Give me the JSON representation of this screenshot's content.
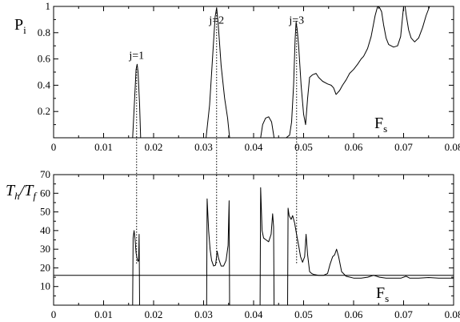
{
  "chart_data": [
    {
      "type": "line",
      "ylabel": "P",
      "ylabel_sub": "i",
      "xlabel": "F",
      "xlabel_sub": "s",
      "xlim": [
        0,
        0.08
      ],
      "ylim": [
        0,
        1
      ],
      "x_ticks": [
        0,
        0.01,
        0.02,
        0.03,
        0.04,
        0.05,
        0.06,
        0.07,
        0.08
      ],
      "x_tick_labels": [
        "0",
        "0.01",
        "0.02",
        "0.03",
        "0.04",
        "0.05",
        "0.06",
        "0.07",
        "0.08"
      ],
      "y_ticks": [
        0.2,
        0.4,
        0.6,
        0.8,
        1
      ],
      "y_tick_labels": [
        "0.2",
        "0.4",
        "0.6",
        "0.8",
        "1"
      ],
      "annotations": [
        {
          "text": "j=1",
          "x": 0.0166,
          "y": 0.6
        },
        {
          "text": "j=2",
          "x": 0.0326,
          "y": 0.87
        },
        {
          "text": "j=3",
          "x": 0.0486,
          "y": 0.87
        }
      ],
      "series": [
        {
          "points": [
            [
              0.0158,
              0.0
            ],
            [
              0.0162,
              0.3
            ],
            [
              0.0165,
              0.52
            ],
            [
              0.0167,
              0.56
            ],
            [
              0.0169,
              0.5
            ],
            [
              0.0172,
              0.25
            ],
            [
              0.0174,
              0.0
            ],
            [
              0.0305,
              0.0
            ],
            [
              0.0312,
              0.25
            ],
            [
              0.0318,
              0.62
            ],
            [
              0.0323,
              0.92
            ],
            [
              0.0326,
              0.99
            ],
            [
              0.0329,
              0.88
            ],
            [
              0.0335,
              0.55
            ],
            [
              0.0342,
              0.3
            ],
            [
              0.0348,
              0.15
            ],
            [
              0.0352,
              0.0
            ],
            [
              0.0414,
              0.0
            ],
            [
              0.0418,
              0.1
            ],
            [
              0.0424,
              0.15
            ],
            [
              0.043,
              0.16
            ],
            [
              0.0436,
              0.12
            ],
            [
              0.0441,
              0.0
            ],
            [
              0.0465,
              0.0
            ],
            [
              0.0472,
              0.02
            ],
            [
              0.0476,
              0.12
            ],
            [
              0.048,
              0.4
            ],
            [
              0.0483,
              0.75
            ],
            [
              0.0485,
              0.88
            ],
            [
              0.0487,
              0.83
            ],
            [
              0.049,
              0.7
            ],
            [
              0.0495,
              0.4
            ],
            [
              0.05,
              0.18
            ],
            [
              0.0504,
              0.1
            ],
            [
              0.0508,
              0.3
            ],
            [
              0.0512,
              0.46
            ],
            [
              0.0518,
              0.48
            ],
            [
              0.0525,
              0.49
            ],
            [
              0.053,
              0.46
            ],
            [
              0.0538,
              0.43
            ],
            [
              0.0548,
              0.41
            ],
            [
              0.0555,
              0.4
            ],
            [
              0.056,
              0.38
            ],
            [
              0.0565,
              0.33
            ],
            [
              0.0572,
              0.36
            ],
            [
              0.0578,
              0.4
            ],
            [
              0.0585,
              0.44
            ],
            [
              0.0592,
              0.49
            ],
            [
              0.06,
              0.52
            ],
            [
              0.0608,
              0.56
            ],
            [
              0.0615,
              0.6
            ],
            [
              0.062,
              0.62
            ],
            [
              0.0628,
              0.68
            ],
            [
              0.0635,
              0.77
            ],
            [
              0.0643,
              0.93
            ],
            [
              0.0648,
              1.0
            ],
            [
              0.0652,
              0.99
            ],
            [
              0.0656,
              0.96
            ],
            [
              0.066,
              0.86
            ],
            [
              0.0665,
              0.76
            ],
            [
              0.067,
              0.71
            ],
            [
              0.068,
              0.69
            ],
            [
              0.0688,
              0.7
            ],
            [
              0.0694,
              0.77
            ],
            [
              0.0698,
              0.92
            ],
            [
              0.07,
              1.0
            ],
            [
              0.0703,
              1.0
            ],
            [
              0.0705,
              0.94
            ],
            [
              0.071,
              0.82
            ],
            [
              0.0715,
              0.76
            ],
            [
              0.0722,
              0.73
            ],
            [
              0.073,
              0.76
            ],
            [
              0.0738,
              0.84
            ],
            [
              0.0745,
              0.93
            ],
            [
              0.0752,
              1.0
            ],
            [
              0.076,
              1.0
            ]
          ]
        }
      ],
      "dotted_x": [
        0.0166,
        0.0326,
        0.0486
      ]
    },
    {
      "type": "line",
      "ylabel": "T",
      "ylabel_sub1": "h",
      "ylabel_slash": "/",
      "ylabel_2": "T",
      "ylabel_sub2": "f",
      "xlabel": "F",
      "xlabel_sub": "s",
      "xlim": [
        0,
        0.08
      ],
      "ylim": [
        0,
        70
      ],
      "x_ticks": [
        0,
        0.01,
        0.02,
        0.03,
        0.04,
        0.05,
        0.06,
        0.07,
        0.08
      ],
      "x_tick_labels": [
        "0",
        "0.01",
        "0.02",
        "0.03",
        "0.04",
        "0.05",
        "0.06",
        "0.07",
        "0.08"
      ],
      "y_ticks": [
        10,
        20,
        30,
        40,
        50,
        60,
        70
      ],
      "y_tick_labels": [
        "10",
        "20",
        "30",
        "40",
        "50",
        "60",
        "70"
      ],
      "hline_y": 16,
      "series": [
        {
          "points": [
            [
              0.0158,
              0.0
            ],
            [
              0.0159,
              36
            ],
            [
              0.0161,
              40
            ],
            [
              0.0163,
              35
            ],
            [
              0.0165,
              28
            ],
            [
              0.0167,
              25
            ],
            [
              0.0169,
              23.5
            ],
            [
              0.017,
              24
            ],
            [
              0.0171,
              38
            ],
            [
              0.0172,
              0.0
            ],
            [
              0.0306,
              0.0
            ],
            [
              0.0307,
              57
            ],
            [
              0.031,
              40
            ],
            [
              0.0313,
              30
            ],
            [
              0.0316,
              24
            ],
            [
              0.032,
              21
            ],
            [
              0.0324,
              21.5
            ],
            [
              0.0327,
              29
            ],
            [
              0.033,
              25
            ],
            [
              0.0335,
              21
            ],
            [
              0.034,
              21
            ],
            [
              0.0345,
              24
            ],
            [
              0.0349,
              32
            ],
            [
              0.0351,
              56
            ],
            [
              0.0352,
              0.0
            ],
            [
              0.0413,
              0.0
            ],
            [
              0.0414,
              63
            ],
            [
              0.0417,
              40
            ],
            [
              0.042,
              36
            ],
            [
              0.0425,
              35
            ],
            [
              0.043,
              34
            ],
            [
              0.0435,
              38
            ],
            [
              0.0438,
              49
            ],
            [
              0.044,
              42
            ],
            [
              0.0441,
              0.0
            ],
            [
              0.0468,
              0.0
            ],
            [
              0.0469,
              52
            ],
            [
              0.0471,
              48
            ],
            [
              0.0475,
              46
            ],
            [
              0.0478,
              48
            ],
            [
              0.0482,
              44
            ],
            [
              0.0486,
              38
            ],
            [
              0.049,
              32
            ],
            [
              0.0494,
              26
            ],
            [
              0.0498,
              23
            ],
            [
              0.0502,
              26
            ],
            [
              0.0505,
              38
            ],
            [
              0.0508,
              27
            ],
            [
              0.0512,
              18
            ],
            [
              0.0516,
              17
            ],
            [
              0.052,
              16.5
            ],
            [
              0.053,
              16
            ],
            [
              0.054,
              16
            ],
            [
              0.0548,
              17
            ],
            [
              0.0553,
              22
            ],
            [
              0.0558,
              26
            ],
            [
              0.0562,
              27
            ],
            [
              0.0566,
              30
            ],
            [
              0.057,
              26
            ],
            [
              0.0576,
              18
            ],
            [
              0.0585,
              15.5
            ],
            [
              0.06,
              14.5
            ],
            [
              0.0615,
              14.5
            ],
            [
              0.0628,
              15
            ],
            [
              0.064,
              16
            ],
            [
              0.0652,
              15
            ],
            [
              0.0665,
              14.5
            ],
            [
              0.068,
              14.5
            ],
            [
              0.0695,
              14.5
            ],
            [
              0.0705,
              15.5
            ],
            [
              0.0712,
              14.5
            ],
            [
              0.073,
              14.5
            ],
            [
              0.075,
              14.8
            ],
            [
              0.077,
              14.5
            ],
            [
              0.079,
              14.5
            ],
            [
              0.08,
              14.5
            ]
          ]
        }
      ],
      "dotted_x": [
        0.0166,
        0.0326,
        0.0486
      ]
    }
  ]
}
